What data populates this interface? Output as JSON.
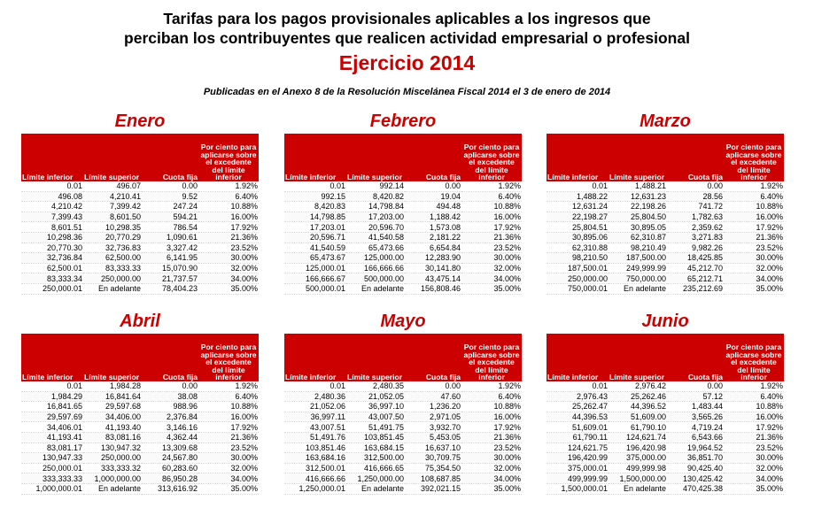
{
  "header": {
    "title_line1": "Tarifas para los pagos provisionales aplicables a los ingresos que",
    "title_line2": "perciban los contribuyentes que realicen actividad empresarial o profesional",
    "year": "Ejercicio 2014",
    "subtitle": "Publicadas en el Anexo 8 de la Resolución Miscelánea Fiscal 2014 el 3 de enero de 2014"
  },
  "columns": {
    "lower": "Límite inferior",
    "upper": "Límite superior",
    "fixed": "Cuota fija",
    "pct": "Por ciento para aplicarse sobre el excedente del límite inferior"
  },
  "colors": {
    "accent": "#cc0000"
  },
  "months": [
    {
      "name": "Enero",
      "rows": [
        [
          "0.01",
          "496.07",
          "0.00",
          "1.92%"
        ],
        [
          "496.08",
          "4,210.41",
          "9.52",
          "6.40%"
        ],
        [
          "4,210.42",
          "7,399.42",
          "247.24",
          "10.88%"
        ],
        [
          "7,399.43",
          "8,601.50",
          "594.21",
          "16.00%"
        ],
        [
          "8,601.51",
          "10,298.35",
          "786.54",
          "17.92%"
        ],
        [
          "10,298.36",
          "20,770.29",
          "1,090.61",
          "21.36%"
        ],
        [
          "20,770.30",
          "32,736.83",
          "3,327.42",
          "23.52%"
        ],
        [
          "32,736.84",
          "62,500.00",
          "6,141.95",
          "30.00%"
        ],
        [
          "62,500.01",
          "83,333.33",
          "15,070.90",
          "32.00%"
        ],
        [
          "83,333.34",
          "250,000.00",
          "21,737.57",
          "34.00%"
        ],
        [
          "250,000.01",
          "En adelante",
          "78,404.23",
          "35.00%"
        ]
      ]
    },
    {
      "name": "Febrero",
      "rows": [
        [
          "0.01",
          "992.14",
          "0.00",
          "1.92%"
        ],
        [
          "992.15",
          "8,420.82",
          "19.04",
          "6.40%"
        ],
        [
          "8,420.83",
          "14,798.84",
          "494.48",
          "10.88%"
        ],
        [
          "14,798.85",
          "17,203.00",
          "1,188.42",
          "16.00%"
        ],
        [
          "17,203.01",
          "20,596.70",
          "1,573.08",
          "17.92%"
        ],
        [
          "20,596.71",
          "41,540.58",
          "2,181.22",
          "21.36%"
        ],
        [
          "41,540.59",
          "65,473.66",
          "6,654.84",
          "23.52%"
        ],
        [
          "65,473.67",
          "125,000.00",
          "12,283.90",
          "30.00%"
        ],
        [
          "125,000.01",
          "166,666.66",
          "30,141.80",
          "32.00%"
        ],
        [
          "166,666.67",
          "500,000.00",
          "43,475.14",
          "34.00%"
        ],
        [
          "500,000.01",
          "En adelante",
          "156,808.46",
          "35.00%"
        ]
      ]
    },
    {
      "name": "Marzo",
      "rows": [
        [
          "0.01",
          "1,488.21",
          "0.00",
          "1.92%"
        ],
        [
          "1,488.22",
          "12,631.23",
          "28.56",
          "6.40%"
        ],
        [
          "12,631.24",
          "22,198.26",
          "741.72",
          "10.88%"
        ],
        [
          "22,198.27",
          "25,804.50",
          "1,782.63",
          "16.00%"
        ],
        [
          "25,804.51",
          "30,895.05",
          "2,359.62",
          "17.92%"
        ],
        [
          "30,895.06",
          "62,310.87",
          "3,271.83",
          "21.36%"
        ],
        [
          "62,310.88",
          "98,210.49",
          "9,982.26",
          "23.52%"
        ],
        [
          "98,210.50",
          "187,500.00",
          "18,425.85",
          "30.00%"
        ],
        [
          "187,500.01",
          "249,999.99",
          "45,212.70",
          "32.00%"
        ],
        [
          "250,000.00",
          "750,000.00",
          "65,212.71",
          "34.00%"
        ],
        [
          "750,000.01",
          "En adelante",
          "235,212.69",
          "35.00%"
        ]
      ]
    },
    {
      "name": "Abril",
      "rows": [
        [
          "0.01",
          "1,984.28",
          "0.00",
          "1.92%"
        ],
        [
          "1,984.29",
          "16,841.64",
          "38.08",
          "6.40%"
        ],
        [
          "16,841.65",
          "29,597.68",
          "988.96",
          "10.88%"
        ],
        [
          "29,597.69",
          "34,406.00",
          "2,376.84",
          "16.00%"
        ],
        [
          "34,406.01",
          "41,193.40",
          "3,146.16",
          "17.92%"
        ],
        [
          "41,193.41",
          "83,081.16",
          "4,362.44",
          "21.36%"
        ],
        [
          "83,081.17",
          "130,947.32",
          "13,309.68",
          "23.52%"
        ],
        [
          "130,947.33",
          "250,000.00",
          "24,567.80",
          "30.00%"
        ],
        [
          "250,000.01",
          "333,333.32",
          "60,283.60",
          "32.00%"
        ],
        [
          "333,333.33",
          "1,000,000.00",
          "86,950.28",
          "34.00%"
        ],
        [
          "1,000,000.01",
          "En adelante",
          "313,616.92",
          "35.00%"
        ]
      ]
    },
    {
      "name": "Mayo",
      "rows": [
        [
          "0.01",
          "2,480.35",
          "0.00",
          "1.92%"
        ],
        [
          "2,480.36",
          "21,052.05",
          "47.60",
          "6.40%"
        ],
        [
          "21,052.06",
          "36,997.10",
          "1,236.20",
          "10.88%"
        ],
        [
          "36,997.11",
          "43,007.50",
          "2,971.05",
          "16.00%"
        ],
        [
          "43,007.51",
          "51,491.75",
          "3,932.70",
          "17.92%"
        ],
        [
          "51,491.76",
          "103,851.45",
          "5,453.05",
          "21.36%"
        ],
        [
          "103,851.46",
          "163,684.15",
          "16,637.10",
          "23.52%"
        ],
        [
          "163,684.16",
          "312,500.00",
          "30,709.75",
          "30.00%"
        ],
        [
          "312,500.01",
          "416,666.65",
          "75,354.50",
          "32.00%"
        ],
        [
          "416,666.66",
          "1,250,000.00",
          "108,687.85",
          "34.00%"
        ],
        [
          "1,250,000.01",
          "En adelante",
          "392,021.15",
          "35.00%"
        ]
      ]
    },
    {
      "name": "Junio",
      "rows": [
        [
          "0.01",
          "2,976.42",
          "0.00",
          "1.92%"
        ],
        [
          "2,976.43",
          "25,262.46",
          "57.12",
          "6.40%"
        ],
        [
          "25,262.47",
          "44,396.52",
          "1,483.44",
          "10.88%"
        ],
        [
          "44,396.53",
          "51,609.00",
          "3,565.26",
          "16.00%"
        ],
        [
          "51,609.01",
          "61,790.10",
          "4,719.24",
          "17.92%"
        ],
        [
          "61,790.11",
          "124,621.74",
          "6,543.66",
          "21.36%"
        ],
        [
          "124,621.75",
          "196,420.98",
          "19,964.52",
          "23.52%"
        ],
        [
          "196,420.99",
          "375,000.00",
          "36,851.70",
          "30.00%"
        ],
        [
          "375,000.01",
          "499,999.98",
          "90,425.40",
          "32.00%"
        ],
        [
          "499,999.99",
          "1,500,000.00",
          "130,425.42",
          "34.00%"
        ],
        [
          "1,500,000.01",
          "En adelante",
          "470,425.38",
          "35.00%"
        ]
      ]
    }
  ]
}
